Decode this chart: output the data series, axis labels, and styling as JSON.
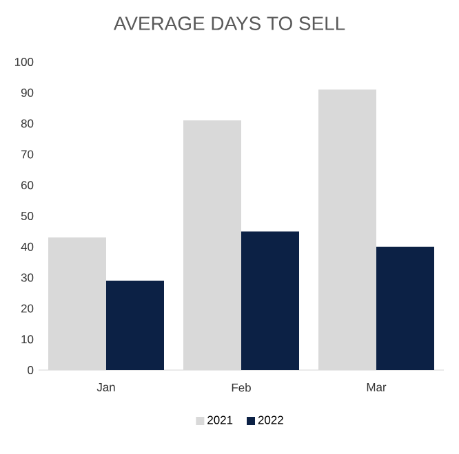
{
  "chart_data": {
    "type": "bar",
    "title": "AVERAGE DAYS TO SELL",
    "categories": [
      "Jan",
      "Feb",
      "Mar"
    ],
    "series": [
      {
        "name": "2021",
        "color": "#d9d9d9",
        "values": [
          43,
          81,
          91
        ]
      },
      {
        "name": "2022",
        "color": "#0c2145",
        "values": [
          29,
          45,
          40
        ]
      }
    ],
    "ylim": [
      0,
      100
    ],
    "yticks": [
      0,
      10,
      20,
      30,
      40,
      50,
      60,
      70,
      80,
      90,
      100
    ],
    "legend": "bottom"
  }
}
